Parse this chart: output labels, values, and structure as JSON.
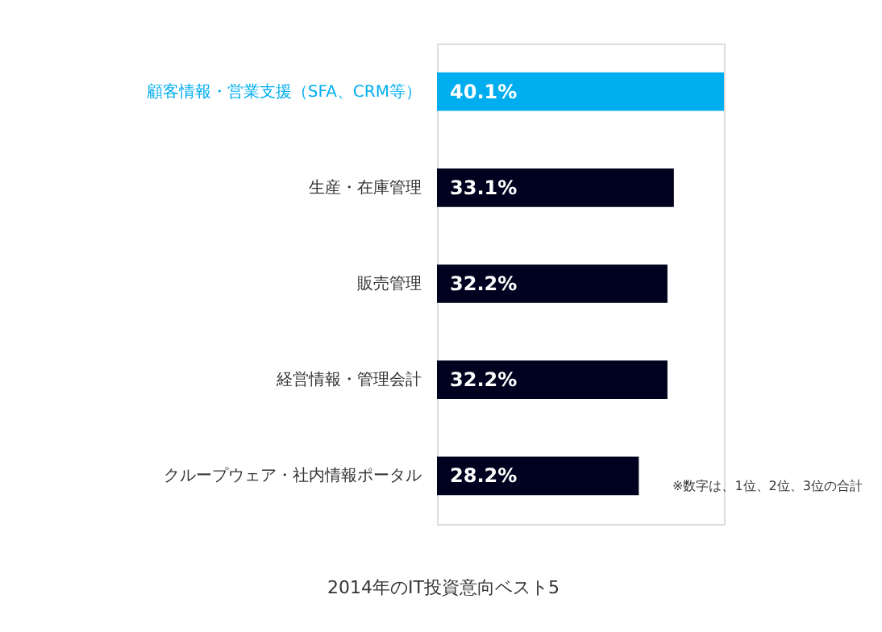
{
  "chart_data": {
    "type": "bar",
    "orientation": "horizontal",
    "title": "2014年のIT投資意向ベスト5",
    "categories": [
      "顧客情報・営業支援（SFA、CRM等）",
      "生産・在庫管理",
      "販売管理",
      "経営情報・管理会計",
      "クループウェア・社内情報ポータル"
    ],
    "values": [
      40.1,
      33.1,
      32.2,
      32.2,
      28.2
    ],
    "value_labels": [
      "40.1%",
      "33.1%",
      "32.2%",
      "32.2%",
      "28.2%"
    ],
    "colors": [
      "#00aeef",
      "#00001f",
      "#00001f",
      "#00001f",
      "#00001f"
    ],
    "annotations": [
      "※数字は、1位、2位、3位の合計"
    ]
  }
}
